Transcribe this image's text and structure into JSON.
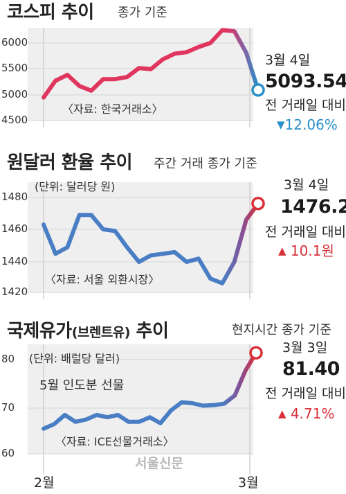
{
  "watermark": "서울신문",
  "x_axis": {
    "labels": [
      "2월",
      "3월"
    ]
  },
  "panels": [
    {
      "title": "코스피 추이",
      "subtitle": "종가 기준",
      "latest_date": "3월 4일",
      "latest_value": "5093.54",
      "compare_label": "전 거래일 대비",
      "change_text": "12.06%",
      "change_direction": "down",
      "change_symbol": "▼",
      "source_note": "〈자료: 한국거래소〉",
      "colors": {
        "start": "#e0355e",
        "end": "#2a8fc9"
      }
    },
    {
      "title": "원달러 환율 추이",
      "subtitle": "주간 거래 종가 기준",
      "unit_note": "(단위: 달러당 원)",
      "latest_date": "3월 4일",
      "latest_value": "1476.2",
      "compare_label": "전 거래일 대비",
      "change_text": "10.1원",
      "change_direction": "up",
      "change_symbol": "▲",
      "source_note": "〈자료: 서울 외환시장〉",
      "colors": {
        "start": "#4a7ec4",
        "end": "#d9303a"
      }
    },
    {
      "title": "국제유가",
      "title_paren": "(브렌트유)",
      "title_tail": "추이",
      "subtitle": "현지시간 종가 기준",
      "unit_note": "(단위: 배럴당 달러)",
      "series_note": "5월 인도분 선물",
      "latest_date": "3월 3일",
      "latest_value": "81.40",
      "compare_label": "전 거래일 대비",
      "change_text": "4.71%",
      "change_direction": "up",
      "change_symbol": "▲",
      "source_note": "〈자료: ICE선물거래소〉",
      "colors": {
        "start": "#4a7ec4",
        "end": "#d9303a"
      }
    }
  ],
  "chart_data": [
    {
      "type": "line",
      "title": "코스피 추이",
      "ylim": [
        4500,
        6300
      ],
      "yticks": [
        4500,
        5000,
        5500,
        6000
      ],
      "grid": true,
      "values": [
        4950,
        5270,
        5380,
        5170,
        5080,
        5300,
        5300,
        5340,
        5510,
        5490,
        5680,
        5790,
        5820,
        5920,
        6000,
        6250,
        6230,
        5810,
        5093.54
      ]
    },
    {
      "type": "line",
      "title": "원달러 환율 추이",
      "ylim": [
        1420,
        1485
      ],
      "yticks": [
        1420,
        1440,
        1460,
        1480
      ],
      "grid": true,
      "values": [
        1463,
        1445,
        1449,
        1469,
        1469,
        1460,
        1459,
        1449,
        1440,
        1444,
        1445,
        1446,
        1440,
        1442,
        1429,
        1426,
        1440,
        1466,
        1476.2
      ]
    },
    {
      "type": "line",
      "title": "국제유가(브렌트유) 추이",
      "ylim": [
        60,
        82
      ],
      "yticks": [
        60,
        70,
        80
      ],
      "grid": true,
      "values": [
        65.5,
        66.5,
        68.5,
        67,
        67.5,
        68.5,
        68,
        68.5,
        67,
        67,
        68,
        66.7,
        69.5,
        71.2,
        71,
        70.5,
        70.6,
        70.9,
        72.6,
        77.7,
        81.4
      ]
    }
  ]
}
